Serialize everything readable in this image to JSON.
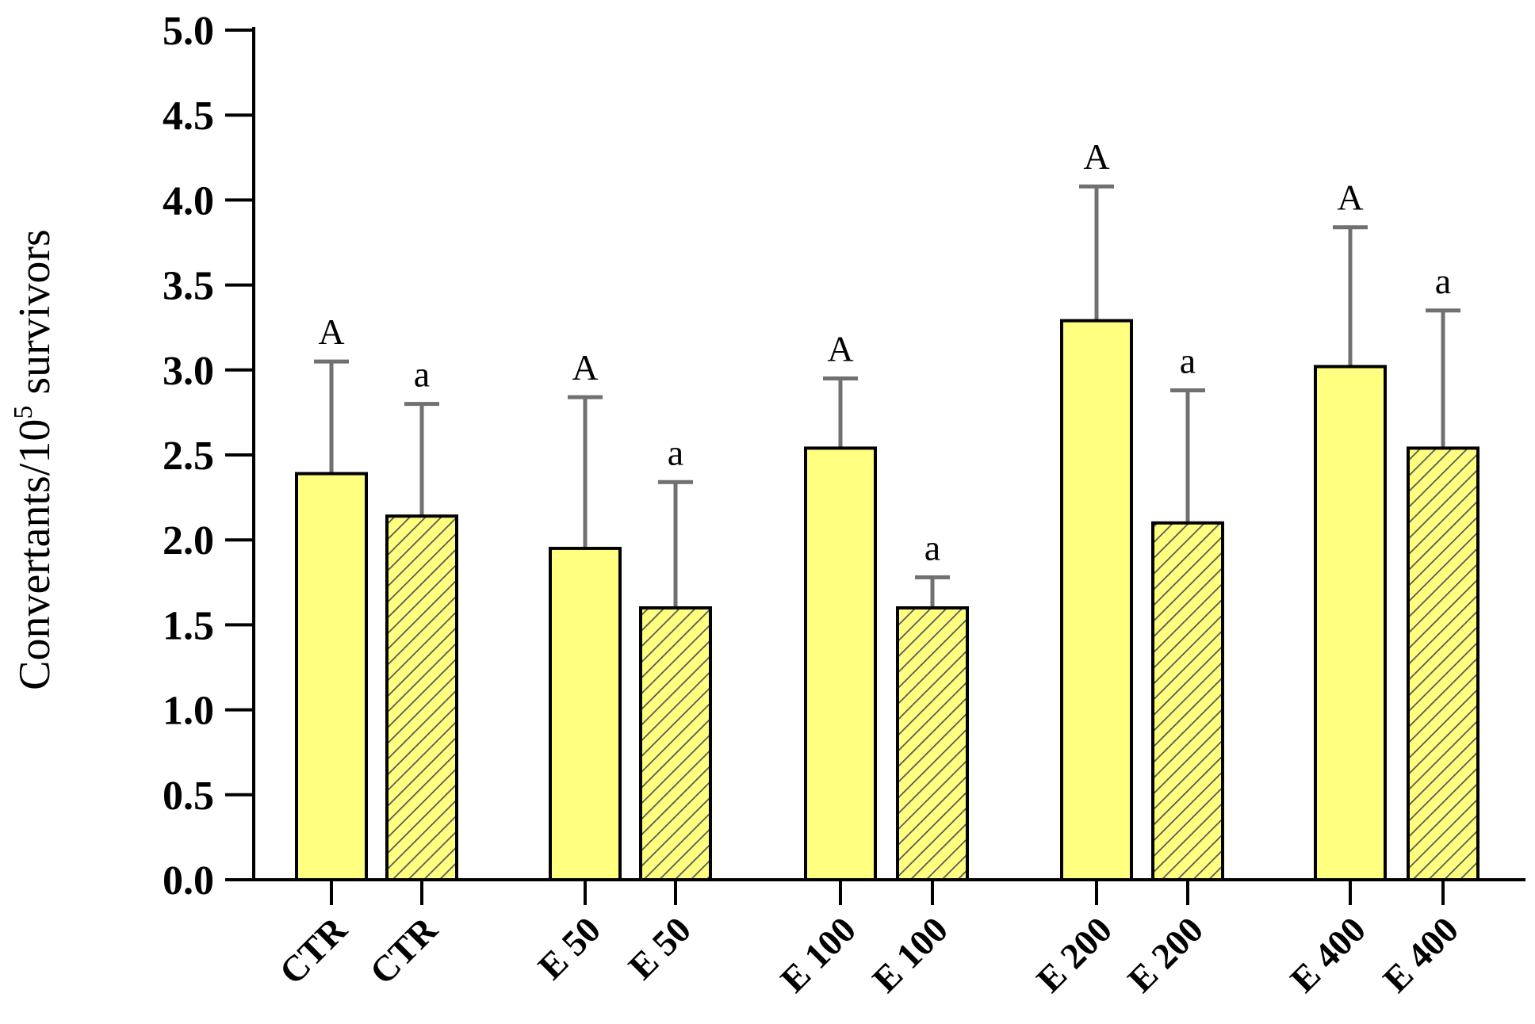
{
  "chart_data": {
    "type": "bar",
    "ylabel": "Convertants/10",
    "ylabel_sup": "5",
    "ylabel_suffix": " survivors",
    "ylim": [
      0,
      5.0
    ],
    "yticks": [
      "0.0",
      "0.5",
      "1.0",
      "1.5",
      "2.0",
      "2.5",
      "3.0",
      "3.5",
      "4.0",
      "4.5",
      "5.0"
    ],
    "grid": false,
    "bar_color": "#ffff80",
    "hatch_color": "#555555",
    "errorbar_color": "#707070",
    "bars": [
      {
        "label": "CTR",
        "value": 2.39,
        "error": 0.66,
        "sig": "A",
        "hatched": false
      },
      {
        "label": "CTR",
        "value": 2.14,
        "error": 0.66,
        "sig": "a",
        "hatched": true
      },
      {
        "label": "E 50",
        "value": 1.95,
        "error": 0.89,
        "sig": "A",
        "hatched": false
      },
      {
        "label": "E 50",
        "value": 1.6,
        "error": 0.74,
        "sig": "a",
        "hatched": true
      },
      {
        "label": "E 100",
        "value": 2.54,
        "error": 0.41,
        "sig": "A",
        "hatched": false
      },
      {
        "label": "E 100",
        "value": 1.6,
        "error": 0.18,
        "sig": "a",
        "hatched": true
      },
      {
        "label": "E 200",
        "value": 3.29,
        "error": 0.79,
        "sig": "A",
        "hatched": false
      },
      {
        "label": "E 200",
        "value": 2.1,
        "error": 0.78,
        "sig": "a",
        "hatched": true
      },
      {
        "label": "E 400",
        "value": 3.02,
        "error": 0.82,
        "sig": "A",
        "hatched": false
      },
      {
        "label": "E 400",
        "value": 2.54,
        "error": 0.81,
        "sig": "a",
        "hatched": true
      }
    ]
  }
}
